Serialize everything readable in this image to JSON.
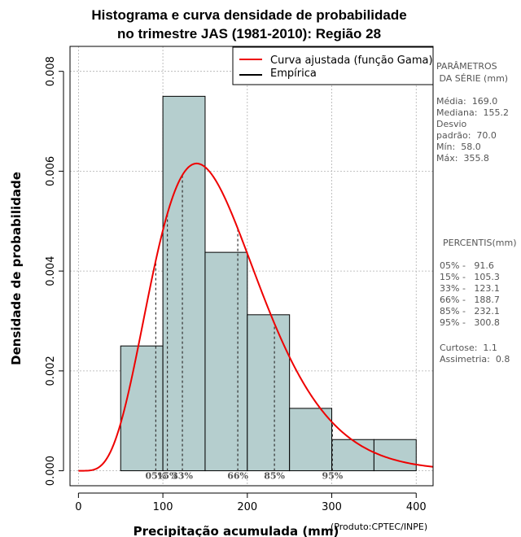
{
  "chart_data": {
    "type": "histogram",
    "title": [
      "Histograma e curva densidade de probabilidade",
      "no trimestre JAS (1981-2010): Região 28"
    ],
    "xlabel": "Precipitação acumulada (mm)",
    "ylabel": "Densidade de probabilidade",
    "credit": "(Produto:CPTEC/INPE)",
    "xlim": [
      -10,
      420
    ],
    "ylim": [
      -0.0003,
      0.0085
    ],
    "x_ticks": [
      0,
      100,
      200,
      300,
      400
    ],
    "y_ticks": [
      0.0,
      0.002,
      0.004,
      0.006,
      0.008
    ],
    "y_tick_labels": [
      "0.000",
      "0.002",
      "0.004",
      "0.006",
      "0.008"
    ],
    "grid": true,
    "bins": [
      {
        "from": 50,
        "to": 100,
        "density": 0.0025
      },
      {
        "from": 100,
        "to": 150,
        "density": 0.0075
      },
      {
        "from": 150,
        "to": 200,
        "density": 0.004375
      },
      {
        "from": 200,
        "to": 250,
        "density": 0.003125
      },
      {
        "from": 250,
        "to": 300,
        "density": 0.00125
      },
      {
        "from": 300,
        "to": 350,
        "density": 0.000625
      },
      {
        "from": 350,
        "to": 400,
        "density": 0.000625
      }
    ],
    "bar_color": "#b5cece",
    "curve_color": "#ee0000",
    "gamma_fit": {
      "mean": 169.0,
      "sd": 70.0
    },
    "legend": {
      "position": "top-right",
      "entries": [
        {
          "label": "Curva ajustada (função Gama)",
          "color": "#ee0000"
        },
        {
          "label": "Empírica",
          "color": "#000000"
        }
      ]
    },
    "percentiles": [
      {
        "label": "05%",
        "value": 91.6
      },
      {
        "label": "15%",
        "value": 105.3
      },
      {
        "label": "33%",
        "value": 123.1
      },
      {
        "label": "66%",
        "value": 188.7
      },
      {
        "label": "85%",
        "value": 232.1
      },
      {
        "label": "95%",
        "value": 300.8
      }
    ]
  },
  "side_panel": {
    "params_heading": [
      "PARÂMETROS",
      " DA SÉRIE (mm)"
    ],
    "params": [
      "Média:  169.0",
      "Mediana:  155.2",
      "Desvio",
      "padrão:  70.0",
      "Mín:  58.0",
      "Máx:  355.8"
    ],
    "percentis_heading": "PERCENTIS(mm)",
    "percentis": [
      "05% -   91.6",
      "15% -   105.3",
      "33% -   123.1",
      "66% -   188.7",
      "85% -   232.1",
      "95% -   300.8"
    ],
    "stats": [
      "Curtose:  1.1",
      "Assimetria:  0.8"
    ]
  }
}
